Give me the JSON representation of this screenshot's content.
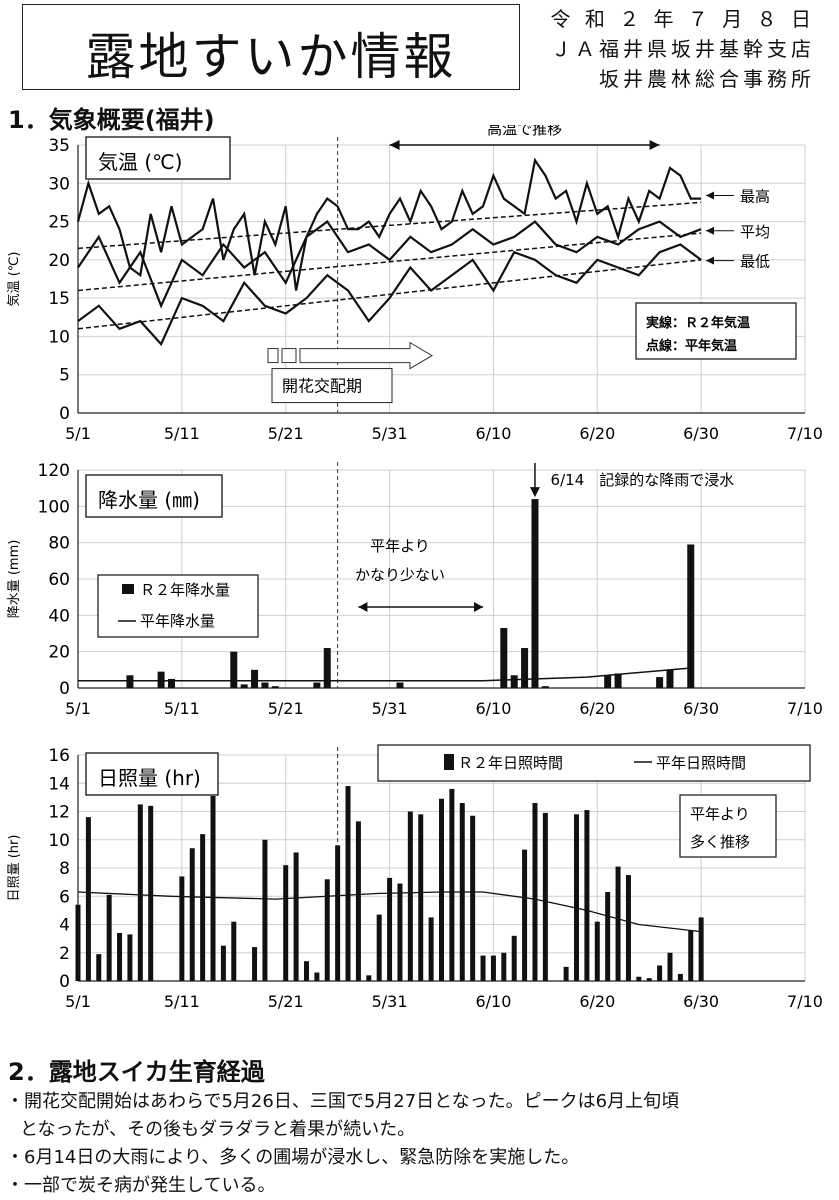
{
  "header": {
    "title": "露地すいか情報",
    "date": "令 和 ２ 年 ７ 月 ８ 日",
    "org1": "ＪＡ福井県坂井基幹支店",
    "org2": "坂井農林総合事務所"
  },
  "section1": {
    "title": "1．気象概要(福井)"
  },
  "section2": {
    "title": "2．露地スイカ生育経過",
    "lines": [
      "・開花交配開始はあわらで5月26日、三国で5月27日となった。ピークは6月上旬頃",
      "となったが、その後もダラダラと着果が続いた。",
      "・6月14日の大雨により、多くの圃場が浸水し、緊急防除を実施した。",
      "・一部で炭そ病が発生している。"
    ]
  },
  "chart_data": [
    {
      "type": "line",
      "panel_label": "気温 (℃)",
      "ylabel": "気温 (℃)",
      "ylim": [
        0,
        35
      ],
      "yticks": [
        0,
        5,
        10,
        15,
        20,
        25,
        30,
        35
      ],
      "x_tick_labels": [
        "5/1",
        "5/11",
        "5/21",
        "5/31",
        "6/10",
        "6/20",
        "6/30",
        "7/10"
      ],
      "x_domain_days": [
        1,
        71
      ],
      "series": [
        {
          "name": "最高",
          "style": "solid",
          "x": [
            1,
            2,
            3,
            4,
            5,
            6,
            7,
            8,
            9,
            10,
            11,
            12,
            13,
            14,
            15,
            16,
            17,
            18,
            19,
            20,
            21,
            22,
            23,
            24,
            25,
            26,
            27,
            28,
            29,
            30,
            31,
            32,
            33,
            34,
            35,
            36,
            37,
            38,
            39,
            40,
            41,
            42,
            43,
            44,
            45,
            46,
            47,
            48,
            49,
            50,
            51,
            52,
            53,
            54,
            55,
            56,
            57,
            58,
            59,
            60,
            61
          ],
          "y": [
            25,
            30,
            26,
            27,
            24,
            19,
            18,
            26,
            21,
            27,
            22,
            23,
            24,
            28,
            20,
            24,
            26,
            18,
            25,
            22,
            27,
            16,
            23,
            26,
            28,
            27,
            24,
            24,
            25,
            23,
            26,
            28,
            25,
            29,
            27,
            24,
            25,
            29,
            26,
            27,
            31,
            28,
            27,
            26,
            33,
            31,
            28,
            29,
            25,
            30,
            26,
            27,
            23,
            28,
            25,
            29,
            28,
            32,
            31,
            28,
            28
          ]
        },
        {
          "name": "平均",
          "style": "solid",
          "x": [
            1,
            3,
            5,
            7,
            9,
            11,
            13,
            15,
            17,
            19,
            21,
            23,
            25,
            27,
            29,
            31,
            33,
            35,
            37,
            39,
            41,
            43,
            45,
            47,
            49,
            51,
            53,
            55,
            57,
            59,
            61
          ],
          "y": [
            19,
            23,
            17,
            21,
            14,
            20,
            18,
            22,
            19,
            21,
            17,
            23,
            25,
            21,
            22,
            20,
            23,
            21,
            22,
            24,
            22,
            23,
            25,
            22,
            21,
            23,
            22,
            24,
            25,
            23,
            24
          ]
        },
        {
          "name": "最低",
          "style": "solid",
          "x": [
            1,
            3,
            5,
            7,
            9,
            11,
            13,
            15,
            17,
            19,
            21,
            23,
            25,
            27,
            29,
            31,
            33,
            35,
            37,
            39,
            41,
            43,
            45,
            47,
            49,
            51,
            53,
            55,
            57,
            59,
            61
          ],
          "y": [
            12,
            14,
            11,
            12,
            9,
            15,
            14,
            12,
            17,
            14,
            13,
            15,
            18,
            16,
            12,
            15,
            19,
            16,
            18,
            20,
            16,
            21,
            20,
            18,
            17,
            20,
            19,
            18,
            21,
            22,
            20
          ]
        },
        {
          "name": "平年最高",
          "style": "dashed",
          "x": [
            1,
            61
          ],
          "y": [
            21.5,
            27.5
          ]
        },
        {
          "name": "平年平均",
          "style": "dashed",
          "x": [
            1,
            61
          ],
          "y": [
            16,
            23.5
          ]
        },
        {
          "name": "平年最低",
          "style": "dashed",
          "x": [
            1,
            61
          ],
          "y": [
            11,
            20
          ]
        }
      ],
      "annotations": {
        "hot": "高温で推移",
        "flowering": "開花交配期",
        "legend_solid": "実線：Ｒ２年気温",
        "legend_dashed": "点線：平年気温",
        "label_max": "最高",
        "label_avg": "平均",
        "label_min": "最低"
      }
    },
    {
      "type": "bar",
      "panel_label": "降水量 (㎜)",
      "ylabel": "降水量 (mm)",
      "ylim": [
        0,
        120
      ],
      "yticks": [
        0,
        20,
        40,
        60,
        80,
        100,
        120
      ],
      "x_tick_labels": [
        "5/1",
        "5/11",
        "5/21",
        "5/31",
        "6/10",
        "6/20",
        "6/30",
        "7/10"
      ],
      "x_domain_days": [
        1,
        71
      ],
      "series": [
        {
          "name": "Ｒ２年降水量",
          "type": "bar",
          "x": [
            6,
            9,
            10,
            16,
            17,
            18,
            19,
            20,
            24,
            25,
            32,
            42,
            43,
            44,
            45,
            46,
            52,
            53,
            57,
            58,
            60
          ],
          "y": [
            7,
            9,
            5,
            20,
            2,
            10,
            3,
            1,
            3,
            22,
            3,
            33,
            7,
            22,
            104,
            1,
            7,
            8,
            6,
            10,
            79
          ]
        },
        {
          "name": "平年降水量",
          "type": "line",
          "x": [
            1,
            25,
            40,
            50,
            60
          ],
          "y": [
            4,
            4,
            4,
            6,
            11
          ]
        }
      ],
      "annotations": {
        "event": "6/14　記録的な降雨で浸水",
        "note1": "平年より",
        "note2": "かなり少ない"
      }
    },
    {
      "type": "bar",
      "panel_label": "日照量 (hr)",
      "ylabel": "日照量 (hr)",
      "ylim": [
        0,
        16
      ],
      "yticks": [
        0,
        2,
        4,
        6,
        8,
        10,
        12,
        14,
        16
      ],
      "x_tick_labels": [
        "5/1",
        "5/11",
        "5/21",
        "5/31",
        "6/10",
        "6/20",
        "6/30",
        "7/10"
      ],
      "x_domain_days": [
        1,
        71
      ],
      "series": [
        {
          "name": "Ｒ２年日照時間",
          "type": "bar",
          "x": [
            1,
            2,
            3,
            4,
            5,
            6,
            7,
            8,
            11,
            12,
            13,
            14,
            15,
            16,
            18,
            19,
            21,
            22,
            23,
            24,
            25,
            26,
            27,
            28,
            29,
            30,
            31,
            32,
            33,
            34,
            35,
            36,
            37,
            38,
            39,
            40,
            41,
            42,
            43,
            44,
            45,
            46,
            48,
            49,
            50,
            51,
            52,
            53,
            54,
            55,
            56,
            57,
            58,
            59,
            60,
            61
          ],
          "y": [
            5.4,
            11.6,
            1.9,
            6.1,
            3.4,
            3.3,
            12.5,
            12.4,
            7.4,
            9.4,
            10.4,
            13.1,
            2.5,
            4.2,
            2.4,
            10,
            8.2,
            9.1,
            1.4,
            0.6,
            7.2,
            9.6,
            13.8,
            11.3,
            0.4,
            4.7,
            7.3,
            6.9,
            12,
            11.8,
            4.5,
            12.9,
            13.6,
            12.6,
            11.7,
            1.8,
            1.8,
            2,
            3.2,
            9.3,
            12.6,
            11.9,
            1,
            11.8,
            12.1,
            4.2,
            6.3,
            8.1,
            7.5,
            0.3,
            0.2,
            1.1,
            2,
            0.5,
            3.6,
            4.5
          ]
        },
        {
          "name": "平年日照時間",
          "type": "line",
          "x": [
            1,
            10,
            20,
            30,
            36,
            40,
            45,
            50,
            55,
            61
          ],
          "y": [
            6.3,
            6,
            5.8,
            6.2,
            6.3,
            6.3,
            5.8,
            5,
            4,
            3.5
          ]
        }
      ],
      "annotations": {
        "note1": "平年より",
        "note2": "多く推移"
      }
    }
  ],
  "colors": {
    "ink": "#111111",
    "paper": "#ffffff"
  }
}
